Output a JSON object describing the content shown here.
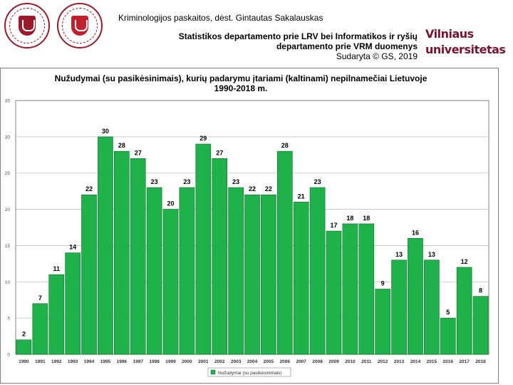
{
  "header": {
    "course": "Kriminologijos paskaitos, dėst. Gintautas Sakalauskas",
    "department_line_1": "Statistikos departamento prie LRV bei Informatikos ir ryšių",
    "department_line_2": "departamento prie VRM duomenys",
    "made_by": "Sudaryta © GS, 2019",
    "brand_line_1": "Vilniaus",
    "brand_line_2": "universitetas"
  },
  "colors": {
    "bar": "#1fb24a",
    "bar_stroke": "#0d6b2a",
    "plot_background": "#ffffff",
    "grid": "#c0c0c0",
    "frame": "#808080",
    "brand": "#7a1330",
    "seal": "#9b1b2a"
  },
  "chart_data": {
    "type": "bar",
    "title_line_1": "Nužudymai (su pasikėsinimais), kurių padarymu įtariami (kaltinami) nepilnamečiai Lietuvoje",
    "title_line_2": "1990-2018 m.",
    "categories": [
      "1990",
      "1991",
      "1992",
      "1993",
      "1994",
      "1995",
      "1996",
      "1997",
      "1998",
      "1999",
      "2000",
      "2001",
      "2002",
      "2003",
      "2004",
      "2005",
      "2006",
      "2007",
      "2008",
      "2009",
      "2010",
      "2011",
      "2012",
      "2013",
      "2014",
      "2015",
      "2016",
      "2017",
      "2018"
    ],
    "series": [
      {
        "name": "Nužudymai (su pasikėsinimais)",
        "values": [
          2,
          7,
          11,
          14,
          22,
          30,
          28,
          27,
          23,
          20,
          23,
          29,
          27,
          23,
          22,
          22,
          28,
          21,
          23,
          17,
          18,
          18,
          9,
          13,
          16,
          13,
          5,
          12,
          8
        ]
      }
    ],
    "ylim": [
      0,
      35
    ],
    "yticks": [
      0,
      5,
      10,
      15,
      20,
      25,
      30,
      35
    ],
    "grid": true,
    "legend": "bottom-center",
    "data_labels": true
  }
}
